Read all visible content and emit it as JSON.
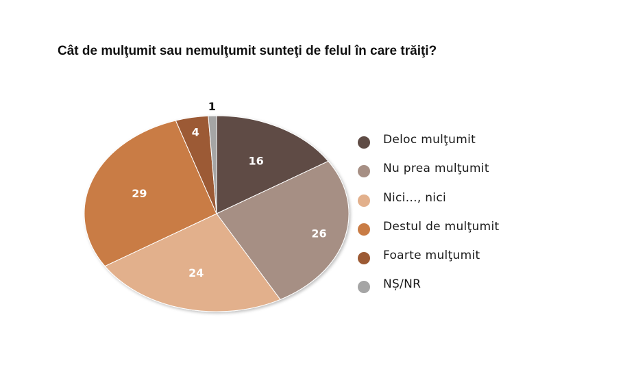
{
  "chart_data": {
    "type": "pie",
    "title": "Cât de mulţumit sau nemulţumit sunteţi de felul în care trăiţi?",
    "categories": [
      "Deloc mulţumit",
      "Nu prea mulţumit",
      "Nici..., nici",
      "Destul de mulţumit",
      "Foarte mulţumit",
      "NȘ/NR"
    ],
    "values": [
      16,
      26,
      24,
      29,
      4,
      1
    ],
    "data_labels": [
      "16",
      "26",
      "24",
      "29",
      "4",
      "1"
    ],
    "colors": [
      "#5f4c45",
      "#a68f84",
      "#e2b08c",
      "#c97c45",
      "#9c5a34",
      "#a5a5a5"
    ],
    "legend_position": "right",
    "grid": false
  }
}
